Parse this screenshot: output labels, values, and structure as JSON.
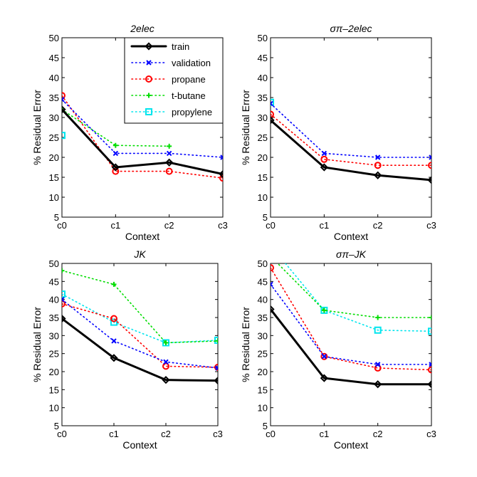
{
  "chart_data": [
    {
      "type": "line",
      "title": "2elec",
      "xlabel": "Context",
      "ylabel": "% Residual Error",
      "categories": [
        "c0",
        "c1",
        "c2",
        "c3"
      ],
      "yticks": [
        5,
        10,
        15,
        20,
        25,
        30,
        35,
        40,
        45,
        50
      ],
      "ylim": [
        5,
        50
      ],
      "series": [
        {
          "name": "train",
          "values": [
            32,
            17.5,
            18.7,
            15.8
          ]
        },
        {
          "name": "validation",
          "values": [
            34.5,
            21,
            21,
            20
          ]
        },
        {
          "name": "propane",
          "values": [
            35.5,
            16.5,
            16.5,
            14.8
          ]
        },
        {
          "name": "t-butane",
          "values": [
            32,
            23,
            22.8,
            null
          ]
        },
        {
          "name": "propylene",
          "values": [
            25.5,
            null,
            null,
            null
          ]
        }
      ]
    },
    {
      "type": "line",
      "title": "σπ–2elec",
      "xlabel": "Context",
      "ylabel": "% Residual Error",
      "categories": [
        "c0",
        "c1",
        "c2",
        "c3"
      ],
      "yticks": [
        5,
        10,
        15,
        20,
        25,
        30,
        35,
        40,
        45,
        50
      ],
      "ylim": [
        5,
        50
      ],
      "series": [
        {
          "name": "train",
          "values": [
            29.3,
            17.5,
            15.5,
            14.3
          ]
        },
        {
          "name": "validation",
          "values": [
            33.5,
            21,
            20,
            20
          ]
        },
        {
          "name": "propane",
          "values": [
            30.8,
            19.5,
            18,
            18
          ]
        },
        {
          "name": "t-butane",
          "values": [
            null,
            null,
            null,
            null
          ]
        },
        {
          "name": "propylene",
          "values": [
            33.8,
            null,
            null,
            null
          ]
        }
      ]
    },
    {
      "type": "line",
      "title": "JK",
      "xlabel": "Context",
      "ylabel": "% Residual Error",
      "categories": [
        "c0",
        "c1",
        "c2",
        "c3"
      ],
      "yticks": [
        5,
        10,
        15,
        20,
        25,
        30,
        35,
        40,
        45,
        50
      ],
      "ylim": [
        5,
        50
      ],
      "series": [
        {
          "name": "train",
          "values": [
            34.7,
            23.8,
            17.7,
            17.5
          ]
        },
        {
          "name": "validation",
          "values": [
            40,
            28.5,
            22.7,
            21
          ]
        },
        {
          "name": "propane",
          "values": [
            38.8,
            34.7,
            21.5,
            21.2
          ]
        },
        {
          "name": "t-butane",
          "values": [
            48,
            44.2,
            28,
            28.5
          ]
        },
        {
          "name": "propylene",
          "values": [
            41.5,
            33.7,
            28,
            28.7
          ]
        }
      ]
    },
    {
      "type": "line",
      "title": "σπ–JK",
      "xlabel": "Context",
      "ylabel": "% Residual Error",
      "categories": [
        "c0",
        "c1",
        "c2",
        "c3"
      ],
      "yticks": [
        5,
        10,
        15,
        20,
        25,
        30,
        35,
        40,
        45,
        50
      ],
      "ylim": [
        5,
        50
      ],
      "series": [
        {
          "name": "train",
          "values": [
            37.3,
            18.2,
            16.5,
            16.5
          ]
        },
        {
          "name": "validation",
          "values": [
            44.2,
            24.2,
            22,
            22
          ]
        },
        {
          "name": "propane",
          "values": [
            48.8,
            24.2,
            21,
            20.5
          ]
        },
        {
          "name": "t-butane",
          "values": [
            52,
            37,
            35,
            35
          ]
        },
        {
          "name": "propylene",
          "values": [
            55,
            37,
            31.5,
            31.2
          ]
        }
      ]
    }
  ],
  "legend": {
    "placement": "top-left panel, upper right",
    "items": [
      {
        "name": "train",
        "color": "#000000",
        "marker": "diamond",
        "style": "solid"
      },
      {
        "name": "validation",
        "color": "#0000ff",
        "marker": "x",
        "style": "dotted"
      },
      {
        "name": "propane",
        "color": "#ff0000",
        "marker": "circle",
        "style": "dotted"
      },
      {
        "name": "t-butane",
        "color": "#00dd00",
        "marker": "plus",
        "style": "dotted"
      },
      {
        "name": "propylene",
        "color": "#00e5ee",
        "marker": "square",
        "style": "dotted"
      }
    ]
  }
}
